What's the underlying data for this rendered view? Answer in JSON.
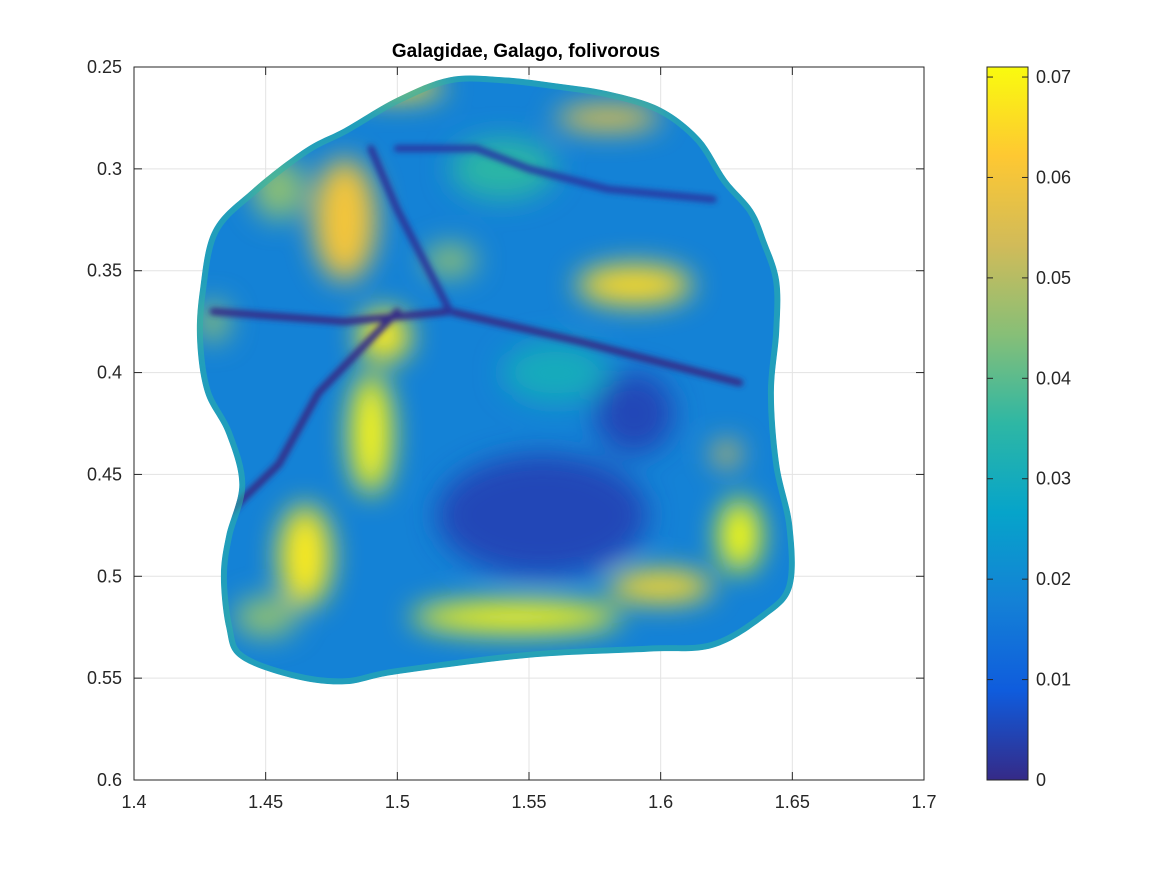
{
  "chart_data": {
    "type": "heatmap",
    "title": "Galagidae, Galago, folivorous",
    "xlabel": "",
    "ylabel": "",
    "xlim": [
      1.4,
      1.7
    ],
    "ylim": [
      0.25,
      0.6
    ],
    "y_reversed": true,
    "grid": true,
    "x_ticks": [
      1.4,
      1.45,
      1.5,
      1.55,
      1.6,
      1.65,
      1.7
    ],
    "x_tick_labels": [
      "1.4",
      "1.45",
      "1.5",
      "1.55",
      "1.6",
      "1.65",
      "1.7"
    ],
    "y_ticks": [
      0.25,
      0.3,
      0.35,
      0.4,
      0.45,
      0.5,
      0.55,
      0.6
    ],
    "y_tick_labels": [
      "0.25",
      "0.3",
      "0.35",
      "0.4",
      "0.45",
      "0.5",
      "0.55",
      "0.6"
    ],
    "colorbar": {
      "colormap": "parula",
      "range": [
        0,
        0.071
      ],
      "ticks": [
        0,
        0.01,
        0.02,
        0.03,
        0.04,
        0.05,
        0.06,
        0.07
      ],
      "tick_labels": [
        "0",
        "0.01",
        "0.02",
        "0.03",
        "0.04",
        "0.05",
        "0.06",
        "0.07"
      ],
      "stops": [
        "#352a87",
        "#0f5cdd",
        "#1481d6",
        "#06a4ca",
        "#2eb7a4",
        "#87bf77",
        "#d1bb59",
        "#fec832",
        "#f9fb0e"
      ]
    },
    "surface_outline": [
      [
        1.425,
        0.36
      ],
      [
        1.43,
        0.33
      ],
      [
        1.445,
        0.31
      ],
      [
        1.465,
        0.29
      ],
      [
        1.48,
        0.28
      ],
      [
        1.5,
        0.265
      ],
      [
        1.52,
        0.255
      ],
      [
        1.54,
        0.255
      ],
      [
        1.56,
        0.258
      ],
      [
        1.58,
        0.262
      ],
      [
        1.6,
        0.27
      ],
      [
        1.615,
        0.285
      ],
      [
        1.625,
        0.305
      ],
      [
        1.635,
        0.32
      ],
      [
        1.64,
        0.335
      ],
      [
        1.645,
        0.355
      ],
      [
        1.645,
        0.38
      ],
      [
        1.643,
        0.41
      ],
      [
        1.645,
        0.445
      ],
      [
        1.65,
        0.475
      ],
      [
        1.65,
        0.505
      ],
      [
        1.64,
        0.52
      ],
      [
        1.62,
        0.535
      ],
      [
        1.595,
        0.537
      ],
      [
        1.55,
        0.54
      ],
      [
        1.5,
        0.548
      ],
      [
        1.48,
        0.553
      ],
      [
        1.46,
        0.55
      ],
      [
        1.44,
        0.54
      ],
      [
        1.435,
        0.525
      ],
      [
        1.433,
        0.5
      ],
      [
        1.435,
        0.48
      ],
      [
        1.44,
        0.455
      ],
      [
        1.435,
        0.43
      ],
      [
        1.427,
        0.41
      ],
      [
        1.424,
        0.385
      ]
    ],
    "features": [
      {
        "x": 1.5,
        "y": 0.26,
        "value": 0.065,
        "rx": 0.018,
        "ry": 0.006
      },
      {
        "x": 1.58,
        "y": 0.275,
        "value": 0.06,
        "rx": 0.02,
        "ry": 0.006
      },
      {
        "x": 1.48,
        "y": 0.325,
        "value": 0.06,
        "rx": 0.012,
        "ry": 0.03
      },
      {
        "x": 1.455,
        "y": 0.31,
        "value": 0.045,
        "rx": 0.01,
        "ry": 0.015
      },
      {
        "x": 1.59,
        "y": 0.357,
        "value": 0.065,
        "rx": 0.022,
        "ry": 0.01
      },
      {
        "x": 1.495,
        "y": 0.382,
        "value": 0.068,
        "rx": 0.01,
        "ry": 0.013
      },
      {
        "x": 1.49,
        "y": 0.43,
        "value": 0.07,
        "rx": 0.008,
        "ry": 0.03
      },
      {
        "x": 1.465,
        "y": 0.49,
        "value": 0.068,
        "rx": 0.01,
        "ry": 0.025
      },
      {
        "x": 1.545,
        "y": 0.52,
        "value": 0.07,
        "rx": 0.04,
        "ry": 0.008
      },
      {
        "x": 1.6,
        "y": 0.505,
        "value": 0.065,
        "rx": 0.02,
        "ry": 0.008
      },
      {
        "x": 1.63,
        "y": 0.48,
        "value": 0.071,
        "rx": 0.008,
        "ry": 0.018
      },
      {
        "x": 1.625,
        "y": 0.44,
        "value": 0.06,
        "rx": 0.005,
        "ry": 0.006
      },
      {
        "x": 1.54,
        "y": 0.3,
        "value": 0.035,
        "rx": 0.02,
        "ry": 0.015
      },
      {
        "x": 1.56,
        "y": 0.4,
        "value": 0.03,
        "rx": 0.02,
        "ry": 0.015
      },
      {
        "x": 1.555,
        "y": 0.47,
        "value": 0.005,
        "rx": 0.04,
        "ry": 0.03
      },
      {
        "x": 1.43,
        "y": 0.375,
        "value": 0.045,
        "rx": 0.006,
        "ry": 0.01
      },
      {
        "x": 1.45,
        "y": 0.52,
        "value": 0.045,
        "rx": 0.012,
        "ry": 0.01
      },
      {
        "x": 1.59,
        "y": 0.42,
        "value": 0.005,
        "rx": 0.015,
        "ry": 0.02
      },
      {
        "x": 1.52,
        "y": 0.345,
        "value": 0.045,
        "rx": 0.01,
        "ry": 0.008
      }
    ],
    "ridges": [
      {
        "points": [
          [
            1.43,
            0.37
          ],
          [
            1.48,
            0.375
          ],
          [
            1.52,
            0.37
          ],
          [
            1.57,
            0.385
          ],
          [
            1.63,
            0.405
          ]
        ],
        "value": 0.0
      },
      {
        "points": [
          [
            1.5,
            0.37
          ],
          [
            1.47,
            0.41
          ],
          [
            1.455,
            0.445
          ],
          [
            1.435,
            0.47
          ]
        ],
        "value": 0.0
      },
      {
        "points": [
          [
            1.5,
            0.29
          ],
          [
            1.53,
            0.29
          ],
          [
            1.55,
            0.3
          ],
          [
            1.58,
            0.31
          ],
          [
            1.62,
            0.315
          ]
        ],
        "value": 0.003
      },
      {
        "points": [
          [
            1.49,
            0.29
          ],
          [
            1.5,
            0.32
          ],
          [
            1.51,
            0.345
          ],
          [
            1.52,
            0.37
          ]
        ],
        "value": 0.002
      }
    ]
  }
}
